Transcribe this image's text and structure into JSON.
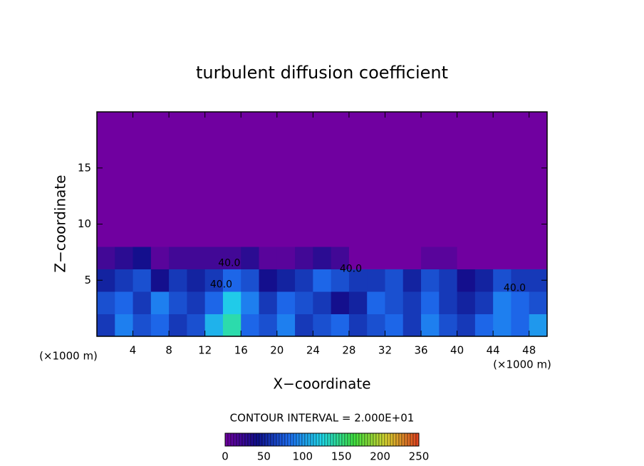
{
  "chart_data": {
    "type": "contour",
    "title": "turbulent diffusion coefficient",
    "x_label": "X−coordinate",
    "y_label": "Z−coordinate",
    "x_unit_labels": [
      "(×1000 m)",
      "(×1000 m)"
    ],
    "xlim": [
      0,
      50
    ],
    "ylim": [
      0,
      20
    ],
    "xticks": [
      4,
      8,
      12,
      16,
      20,
      24,
      28,
      32,
      36,
      40,
      44,
      48
    ],
    "yticks": [
      5,
      10,
      15
    ],
    "x_edges": [
      0,
      2,
      4,
      6,
      8,
      10,
      12,
      14,
      16,
      18,
      20,
      22,
      24,
      26,
      28,
      30,
      32,
      34,
      36,
      38,
      40,
      42,
      44,
      46,
      48,
      50
    ],
    "z_edges": [
      0,
      2,
      4,
      6,
      8,
      10,
      12,
      14,
      16,
      18,
      20
    ],
    "values": [
      [
        60,
        90,
        70,
        80,
        60,
        70,
        110,
        140,
        80,
        70,
        90,
        60,
        70,
        80,
        60,
        70,
        80,
        60,
        90,
        70,
        60,
        80,
        90,
        80,
        100
      ],
      [
        70,
        80,
        60,
        90,
        70,
        60,
        80,
        120,
        90,
        60,
        80,
        70,
        60,
        40,
        50,
        80,
        70,
        60,
        80,
        60,
        50,
        60,
        90,
        80,
        70
      ],
      [
        50,
        60,
        70,
        40,
        60,
        50,
        60,
        80,
        70,
        40,
        50,
        60,
        80,
        70,
        60,
        60,
        70,
        50,
        70,
        60,
        40,
        50,
        70,
        60,
        60
      ],
      [
        20,
        30,
        40,
        10,
        20,
        20,
        20,
        20,
        30,
        10,
        10,
        20,
        30,
        20,
        0,
        0,
        0,
        0,
        10,
        10,
        0,
        0,
        0,
        0,
        0
      ],
      [
        0,
        0,
        0,
        0,
        0,
        0,
        0,
        0,
        0,
        0,
        0,
        0,
        0,
        0,
        0,
        0,
        0,
        0,
        0,
        0,
        0,
        0,
        0,
        0,
        0
      ],
      [
        0,
        0,
        0,
        0,
        0,
        0,
        0,
        0,
        0,
        0,
        0,
        0,
        0,
        0,
        0,
        0,
        0,
        0,
        0,
        0,
        0,
        0,
        0,
        0,
        0
      ],
      [
        0,
        0,
        0,
        0,
        0,
        0,
        0,
        0,
        0,
        0,
        0,
        0,
        0,
        0,
        0,
        0,
        0,
        0,
        0,
        0,
        0,
        0,
        0,
        0,
        0
      ],
      [
        0,
        0,
        0,
        0,
        0,
        0,
        0,
        0,
        0,
        0,
        0,
        0,
        0,
        0,
        0,
        0,
        0,
        0,
        0,
        0,
        0,
        0,
        0,
        0,
        0
      ],
      [
        0,
        0,
        0,
        0,
        0,
        0,
        0,
        0,
        0,
        0,
        0,
        0,
        0,
        0,
        0,
        0,
        0,
        0,
        0,
        0,
        0,
        0,
        0,
        0,
        0
      ],
      [
        0,
        0,
        0,
        0,
        0,
        0,
        0,
        0,
        0,
        0,
        0,
        0,
        0,
        0,
        0,
        0,
        0,
        0,
        0,
        0,
        0,
        0,
        0,
        0,
        0
      ]
    ],
    "contour_labels": [
      {
        "x": 14.7,
        "y": 6.5,
        "value": 40,
        "label": "40.0"
      },
      {
        "x": 13.8,
        "y": 4.6,
        "value": 40,
        "label": "40.0"
      },
      {
        "x": 28.2,
        "y": 6.0,
        "value": 40,
        "label": "40.0"
      },
      {
        "x": 46.4,
        "y": 4.3,
        "value": 40,
        "label": "40.0"
      }
    ],
    "contour_interval_text": "CONTOUR INTERVAL = 2.000E+01",
    "clim": [
      0,
      250
    ],
    "colorbar_ticks": [
      0,
      50,
      100,
      150,
      200,
      250
    ],
    "colormap": [
      "#7000a0",
      "#10108c",
      "#1e6ef0",
      "#20d8e8",
      "#40e040",
      "#d8d030",
      "#e04020"
    ]
  }
}
